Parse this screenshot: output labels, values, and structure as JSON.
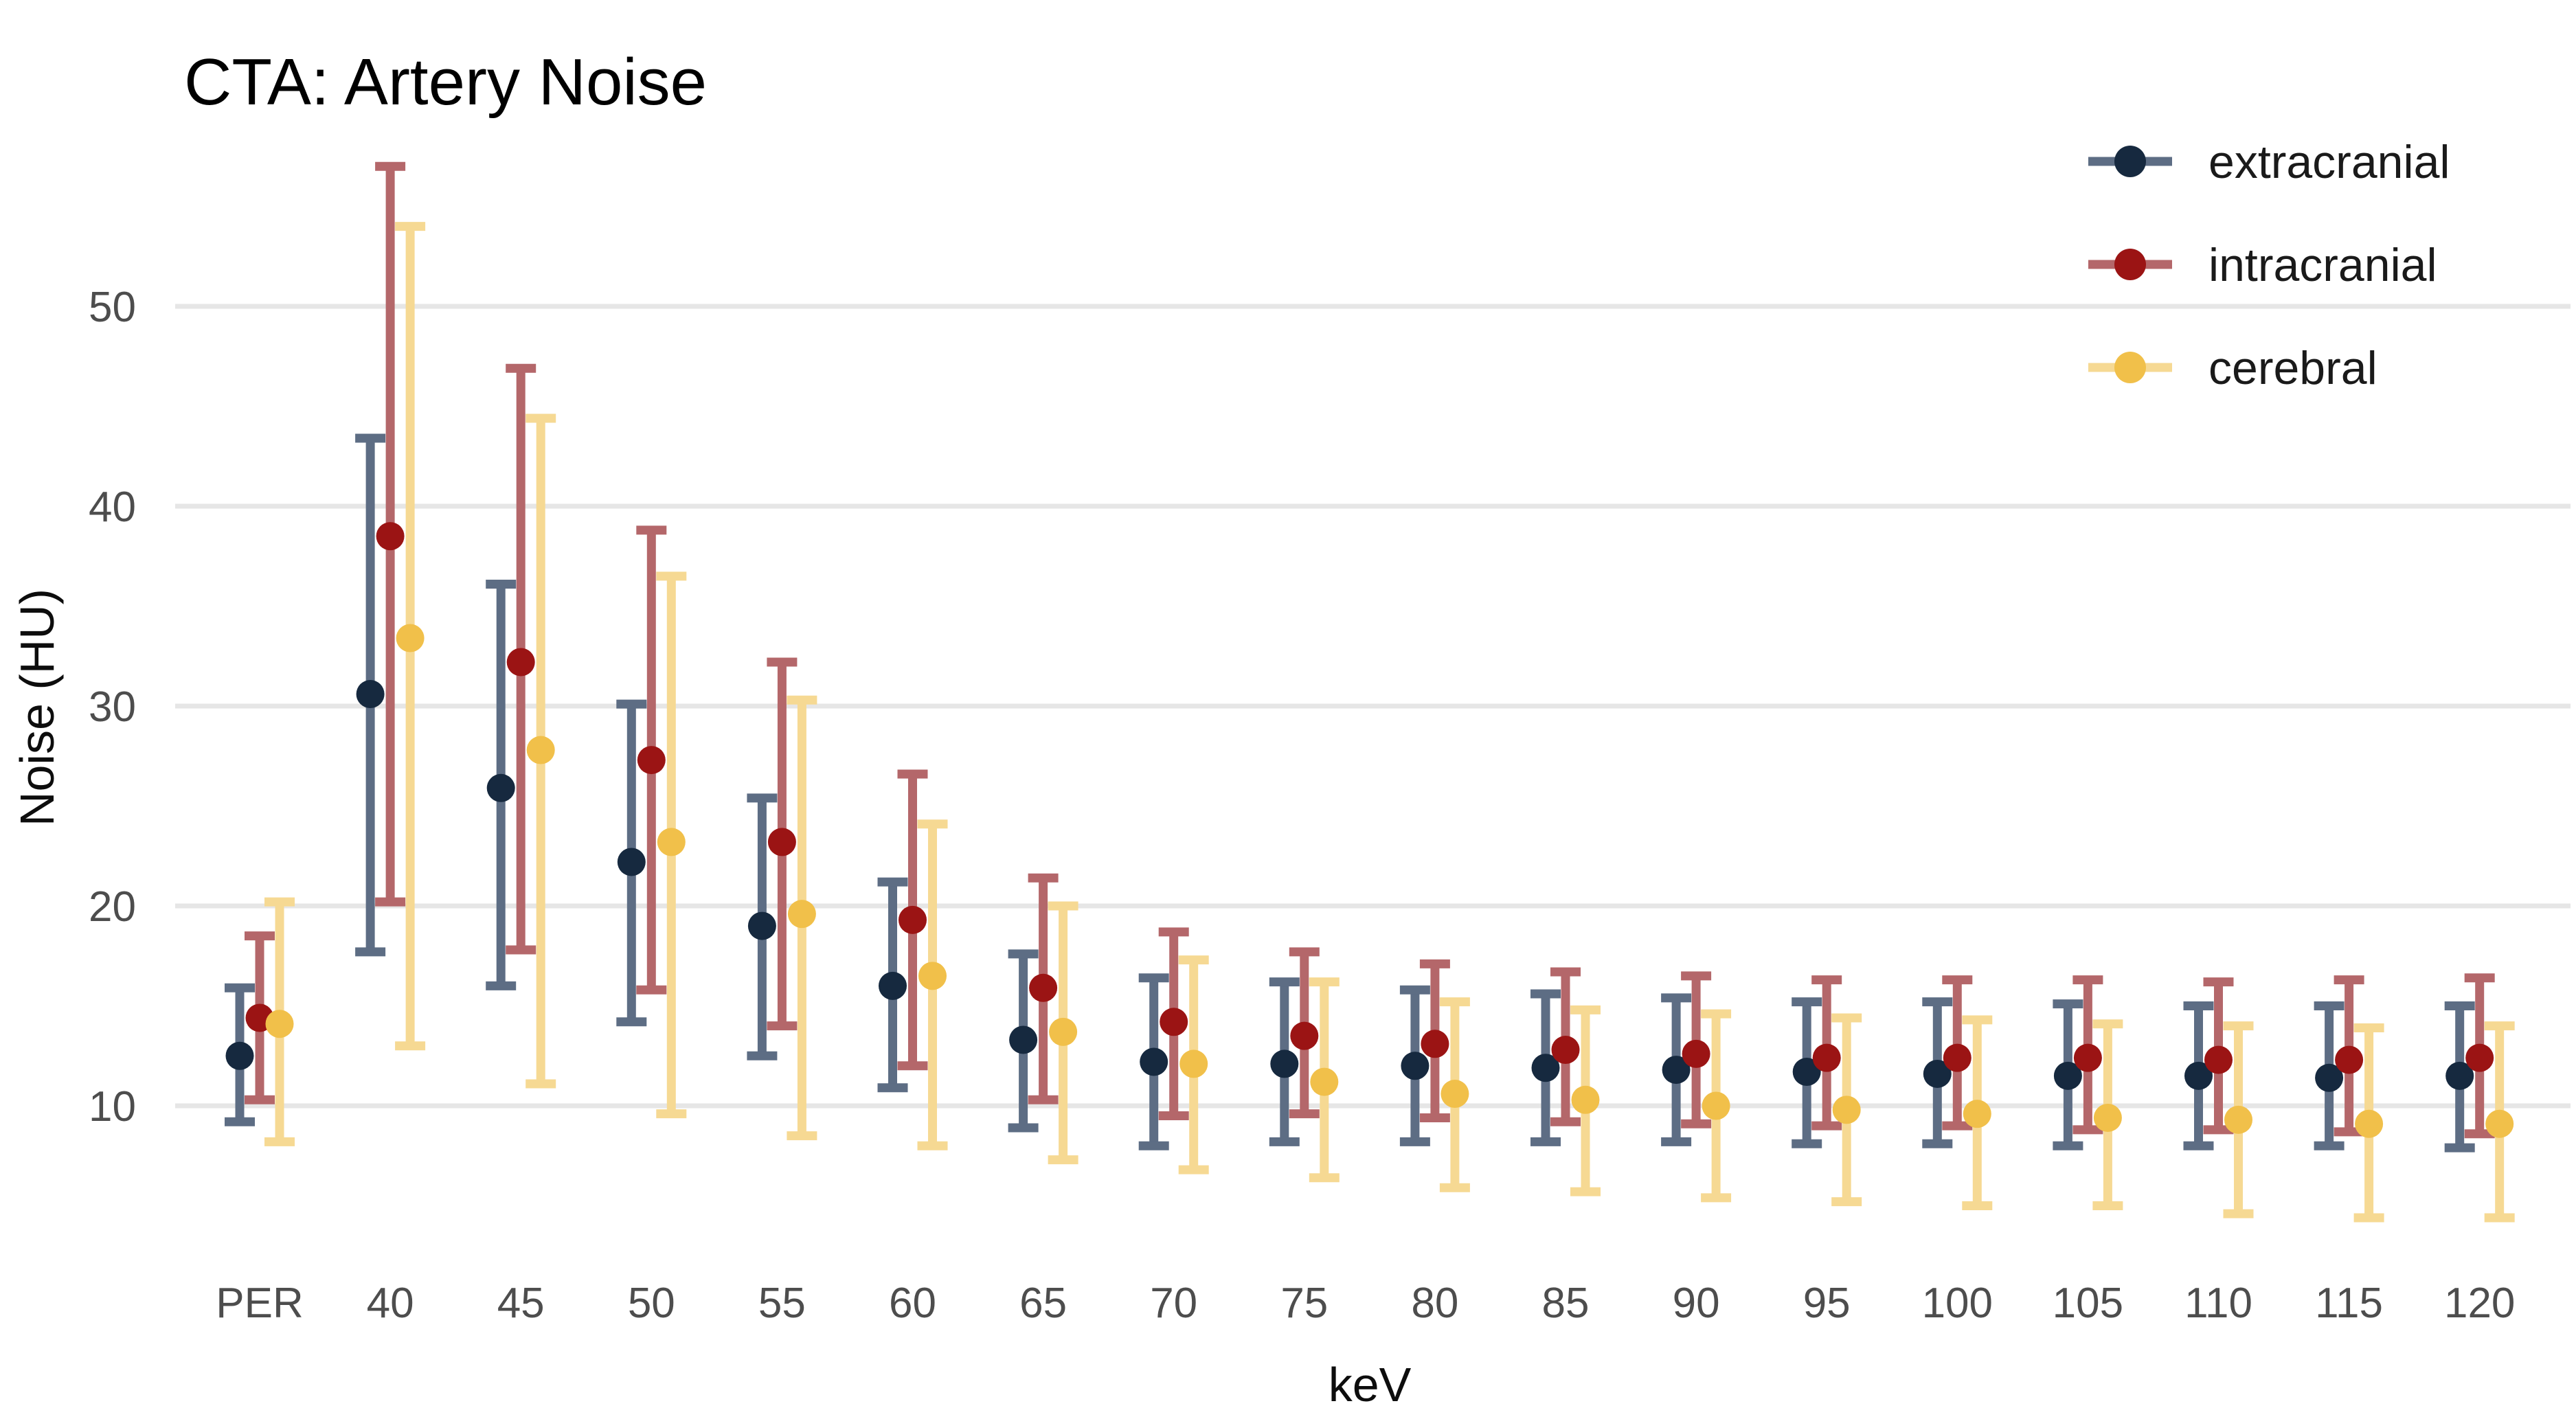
{
  "chart_data": {
    "type": "errorbar-point",
    "title": "CTA: Artery Noise",
    "xlabel": "keV",
    "ylabel": "Noise (HU)",
    "categories": [
      "PER",
      "40",
      "45",
      "50",
      "55",
      "60",
      "65",
      "70",
      "75",
      "80",
      "85",
      "90",
      "95",
      "100",
      "105",
      "110",
      "115",
      "120"
    ],
    "y_ticks": [
      10,
      20,
      30,
      40,
      50
    ],
    "ylim": [
      3.2,
      60.5
    ],
    "grid": "horizontal-only",
    "legend_position": "top-right-inside",
    "series": [
      {
        "name": "extracranial",
        "dot_color": "#16293f",
        "bar_color": "#5d6d84",
        "mean": [
          12.5,
          30.6,
          25.9,
          22.2,
          19.0,
          16.0,
          13.3,
          12.2,
          12.1,
          12.0,
          11.9,
          11.8,
          11.7,
          11.6,
          11.5,
          11.5,
          11.4,
          11.5
        ],
        "lower": [
          9.2,
          17.7,
          16.0,
          14.2,
          12.5,
          10.9,
          8.9,
          8.0,
          8.2,
          8.2,
          8.2,
          8.2,
          8.1,
          8.1,
          8.0,
          8.0,
          8.0,
          7.9
        ],
        "upper": [
          15.9,
          43.4,
          36.1,
          30.1,
          25.4,
          21.2,
          17.6,
          16.4,
          16.2,
          15.8,
          15.6,
          15.4,
          15.2,
          15.2,
          15.1,
          15.0,
          15.0,
          15.0
        ]
      },
      {
        "name": "intracranial",
        "dot_color": "#9b1414",
        "bar_color": "#b4676a",
        "mean": [
          14.4,
          38.5,
          32.2,
          27.3,
          23.2,
          19.3,
          15.9,
          14.2,
          13.5,
          13.1,
          12.8,
          12.6,
          12.4,
          12.4,
          12.4,
          12.3,
          12.3,
          12.4
        ],
        "lower": [
          10.3,
          20.2,
          17.8,
          15.8,
          14.0,
          12.0,
          10.3,
          9.5,
          9.6,
          9.4,
          9.2,
          9.1,
          9.0,
          9.0,
          8.8,
          8.8,
          8.7,
          8.6
        ],
        "upper": [
          18.5,
          57.0,
          46.9,
          38.8,
          32.2,
          26.6,
          21.4,
          18.7,
          17.7,
          17.1,
          16.7,
          16.5,
          16.3,
          16.3,
          16.3,
          16.2,
          16.3,
          16.4
        ]
      },
      {
        "name": "cerebral",
        "dot_color": "#f1c04a",
        "bar_color": "#f6d993",
        "mean": [
          14.1,
          33.4,
          27.8,
          23.2,
          19.6,
          16.5,
          13.7,
          12.1,
          11.2,
          10.6,
          10.3,
          10.0,
          9.8,
          9.6,
          9.4,
          9.3,
          9.1,
          9.1
        ],
        "lower": [
          8.2,
          13.0,
          11.1,
          9.6,
          8.5,
          8.0,
          7.3,
          6.8,
          6.4,
          5.9,
          5.7,
          5.4,
          5.2,
          5.0,
          5.0,
          4.6,
          4.4,
          4.4
        ],
        "upper": [
          20.2,
          54.0,
          44.4,
          36.5,
          30.3,
          24.1,
          20.0,
          17.3,
          16.2,
          15.2,
          14.8,
          14.6,
          14.4,
          14.3,
          14.1,
          14.0,
          13.9,
          14.0
        ]
      }
    ]
  },
  "colors": {
    "background": "#ffffff",
    "gridline": "#e6e6e6",
    "tick_text": "#4d4d4d",
    "axis_title_text": "#0d0d0d",
    "title_text": "#000000",
    "legend_text": "#1a1a1a"
  }
}
